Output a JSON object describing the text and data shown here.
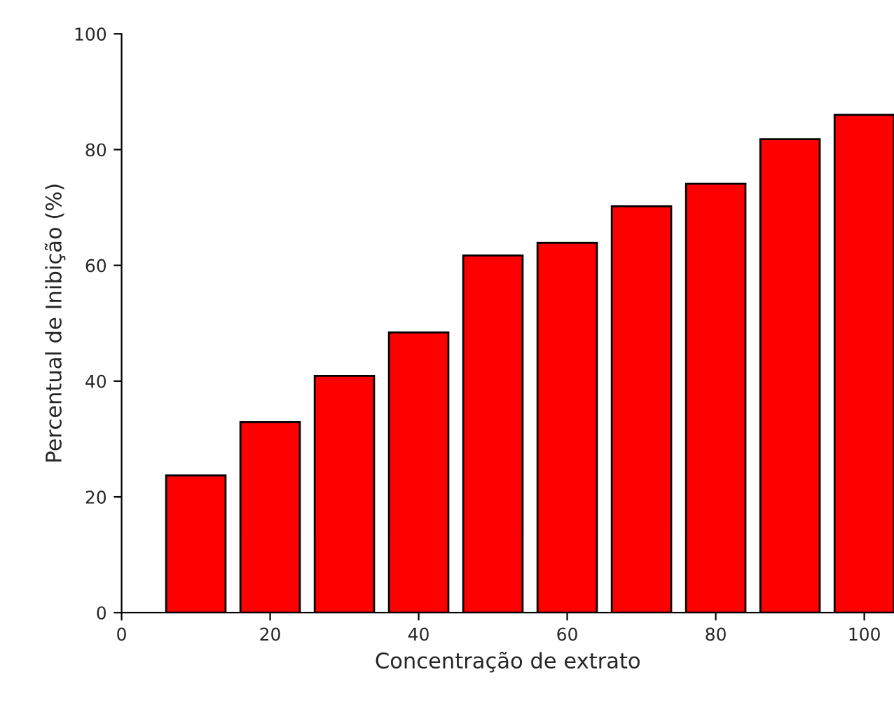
{
  "chart_data": {
    "type": "bar",
    "xlabel": "Concentração de extrato",
    "ylabel": "Percentual de Inibição (%)",
    "x": [
      10,
      20,
      30,
      40,
      50,
      60,
      70,
      80,
      90,
      100
    ],
    "values": [
      23.7,
      32.9,
      40.9,
      48.4,
      61.7,
      63.9,
      70.2,
      74.1,
      81.8,
      86.0
    ],
    "color": "#ff0000",
    "xlim": [
      0,
      104
    ],
    "xticks": [
      0,
      20,
      40,
      60,
      80,
      100
    ],
    "ylim": [
      0,
      100
    ],
    "yticks": [
      0,
      20,
      40,
      60,
      80,
      100
    ],
    "grid": false
  }
}
